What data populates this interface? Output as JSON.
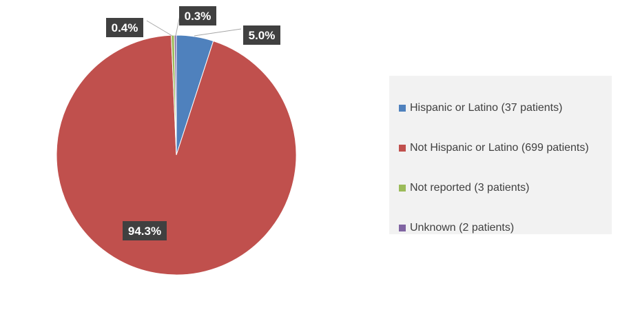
{
  "chart_data": {
    "type": "pie",
    "categories": [
      "Hispanic or Latino (37 patients)",
      "Not Hispanic or Latino (699 patients)",
      "Not reported (3 patients)",
      "Unknown (2 patients)"
    ],
    "values": [
      37,
      699,
      3,
      2
    ],
    "percent_labels": [
      "5.0%",
      "94.3%",
      "0.4%",
      "0.3%"
    ],
    "colors": [
      "#4f81bd",
      "#c0504d",
      "#9bbb59",
      "#8064a2"
    ],
    "legend_position": "right"
  }
}
